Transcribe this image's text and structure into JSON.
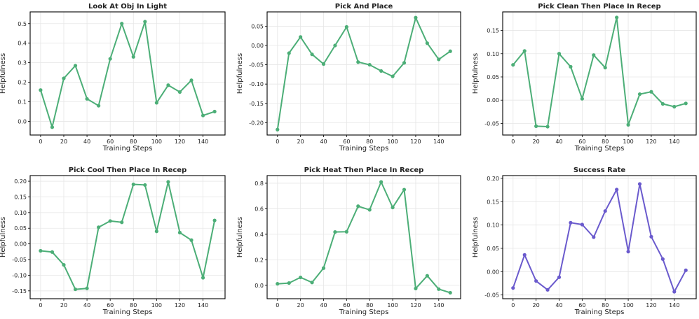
{
  "figure": {
    "xlabel": "Training Steps",
    "ylabel": "Helpfulness",
    "x_ticks": [
      0,
      20,
      40,
      60,
      80,
      100,
      120,
      140
    ],
    "colors": {
      "green": "#4cae77",
      "purple": "#6a5acd"
    }
  },
  "chart_data": [
    {
      "type": "line",
      "title": "Look At Obj In Light",
      "xlabel": "Training Steps",
      "ylabel": "Helpfulness",
      "color": "#4cae77",
      "x": [
        0,
        10,
        20,
        30,
        40,
        50,
        60,
        70,
        80,
        90,
        100,
        110,
        120,
        130,
        140,
        150
      ],
      "y": [
        0.16,
        -0.03,
        0.22,
        0.285,
        0.115,
        0.08,
        0.32,
        0.5,
        0.33,
        0.51,
        0.095,
        0.185,
        0.15,
        0.21,
        0.03,
        0.05
      ],
      "xlim": [
        -9,
        159
      ],
      "ylim": [
        -0.07,
        0.56
      ],
      "yticks": [
        0.0,
        0.1,
        0.2,
        0.3,
        0.4,
        0.5
      ],
      "ytick_labels": [
        "0.0",
        "0.1",
        "0.2",
        "0.3",
        "0.4",
        "0.5"
      ],
      "grid": true
    },
    {
      "type": "line",
      "title": "Pick And Place",
      "xlabel": "Training Steps",
      "ylabel": "Helpfulness",
      "color": "#4cae77",
      "x": [
        0,
        10,
        20,
        30,
        40,
        50,
        60,
        70,
        80,
        90,
        100,
        110,
        120,
        130,
        140,
        150
      ],
      "y": [
        -0.218,
        -0.02,
        0.022,
        -0.023,
        -0.048,
        0.0,
        0.048,
        -0.043,
        -0.05,
        -0.066,
        -0.08,
        -0.045,
        0.072,
        0.006,
        -0.036,
        -0.015
      ],
      "xlim": [
        -9,
        159
      ],
      "ylim": [
        -0.232,
        0.087
      ],
      "yticks": [
        -0.2,
        -0.15,
        -0.1,
        -0.05,
        0.0,
        0.05
      ],
      "ytick_labels": [
        "-0.20",
        "-0.15",
        "-0.10",
        "-0.05",
        "0.00",
        "0.05"
      ],
      "grid": true
    },
    {
      "type": "line",
      "title": "Pick Clean Then Place In Recep",
      "xlabel": "Training Steps",
      "ylabel": "Helpfulness",
      "color": "#4cae77",
      "x": [
        0,
        10,
        20,
        30,
        40,
        50,
        60,
        70,
        80,
        90,
        100,
        110,
        120,
        130,
        140,
        150
      ],
      "y": [
        0.076,
        0.106,
        -0.056,
        -0.057,
        0.1,
        0.072,
        0.003,
        0.097,
        0.07,
        0.178,
        -0.053,
        0.013,
        0.018,
        -0.008,
        -0.014,
        -0.007
      ],
      "xlim": [
        -9,
        159
      ],
      "ylim": [
        -0.075,
        0.19
      ],
      "yticks": [
        -0.05,
        0.0,
        0.05,
        0.1,
        0.15
      ],
      "ytick_labels": [
        "-0.05",
        "0.00",
        "0.05",
        "0.10",
        "0.15"
      ],
      "grid": true
    },
    {
      "type": "line",
      "title": "Pick Cool Then Place In Recep",
      "xlabel": "Training Steps",
      "ylabel": "Helpfulness",
      "color": "#4cae77",
      "x": [
        0,
        10,
        20,
        30,
        40,
        50,
        60,
        70,
        80,
        90,
        100,
        110,
        120,
        130,
        140,
        150
      ],
      "y": [
        -0.022,
        -0.026,
        -0.067,
        -0.145,
        -0.142,
        0.053,
        0.073,
        0.069,
        0.19,
        0.188,
        0.04,
        0.198,
        0.036,
        0.012,
        -0.108,
        0.075
      ],
      "xlim": [
        -9,
        159
      ],
      "ylim": [
        -0.175,
        0.218
      ],
      "yticks": [
        -0.15,
        -0.1,
        -0.05,
        0.0,
        0.05,
        0.1,
        0.15,
        0.2
      ],
      "ytick_labels": [
        "-0.15",
        "-0.10",
        "-0.05",
        "0.00",
        "0.05",
        "0.10",
        "0.15",
        "0.20"
      ],
      "grid": true
    },
    {
      "type": "line",
      "title": "Pick Heat Then Place In Recep",
      "xlabel": "Training Steps",
      "ylabel": "Helpfulness",
      "color": "#4cae77",
      "x": [
        0,
        10,
        20,
        30,
        40,
        50,
        60,
        70,
        80,
        90,
        100,
        110,
        120,
        130,
        140,
        150
      ],
      "y": [
        0.012,
        0.018,
        0.062,
        0.022,
        0.135,
        0.418,
        0.42,
        0.62,
        0.592,
        0.81,
        0.61,
        0.75,
        -0.025,
        0.075,
        -0.03,
        -0.058
      ],
      "xlim": [
        -9,
        159
      ],
      "ylim": [
        -0.105,
        0.86
      ],
      "yticks": [
        0.0,
        0.2,
        0.4,
        0.6,
        0.8
      ],
      "ytick_labels": [
        "0.0",
        "0.2",
        "0.4",
        "0.6",
        "0.8"
      ],
      "grid": true
    },
    {
      "type": "line",
      "title": "Success Rate",
      "xlabel": "Training Steps",
      "ylabel": "Helpfulness",
      "color": "#6a5acd",
      "x": [
        0,
        10,
        20,
        30,
        40,
        50,
        60,
        70,
        80,
        90,
        100,
        110,
        120,
        130,
        140,
        150
      ],
      "y": [
        -0.035,
        0.036,
        -0.02,
        -0.039,
        -0.012,
        0.105,
        0.101,
        0.074,
        0.13,
        0.176,
        0.043,
        0.188,
        0.075,
        0.027,
        -0.043,
        0.003
      ],
      "xlim": [
        -9,
        159
      ],
      "ylim": [
        -0.058,
        0.206
      ],
      "yticks": [
        -0.05,
        0.0,
        0.05,
        0.1,
        0.15,
        0.2
      ],
      "ytick_labels": [
        "-0.05",
        "0.00",
        "0.05",
        "0.10",
        "0.15",
        "0.20"
      ],
      "grid": true
    }
  ]
}
